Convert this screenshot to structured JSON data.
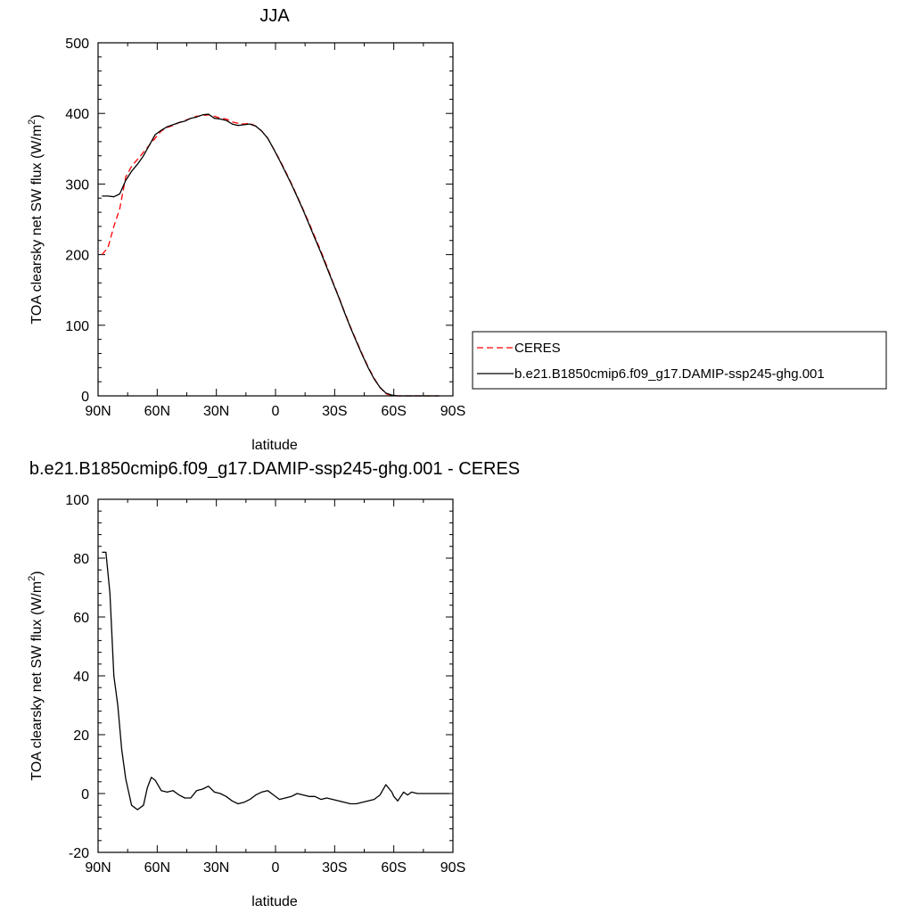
{
  "chart_data": [
    {
      "type": "line",
      "title": "JJA",
      "xlabel": "latitude",
      "ylabel": "TOA clearsky net SW flux (W/m",
      "ylabel_sup": "2",
      "ylabel_end": ")",
      "xlim": [
        90,
        -90
      ],
      "ylim": [
        0,
        500
      ],
      "x_ticks": [
        90,
        60,
        30,
        0,
        -30,
        -60,
        -90
      ],
      "x_tick_labels": [
        "90N",
        "60N",
        "30N",
        "0",
        "30S",
        "60S",
        "90S"
      ],
      "y_ticks": [
        0,
        100,
        200,
        300,
        400,
        500
      ],
      "y_tick_labels": [
        "0",
        "100",
        "200",
        "300",
        "400",
        "500"
      ],
      "legend_position": "right",
      "series": [
        {
          "name": "CERES",
          "color": "#ff0000",
          "dash": "dashed",
          "x": [
            88,
            85,
            82,
            79,
            76,
            73,
            70,
            67,
            64,
            61,
            58,
            55,
            52,
            49,
            46,
            43,
            40,
            37,
            34,
            31,
            28,
            25,
            22,
            19,
            16,
            13,
            10,
            7,
            4,
            1,
            -2,
            -5,
            -8,
            -11,
            -14,
            -17,
            -20,
            -23,
            -26,
            -29,
            -32,
            -35,
            -38,
            -41,
            -44,
            -47,
            -50,
            -53,
            -56,
            -59,
            -62,
            -65,
            -68,
            -71,
            -74,
            -77,
            -80,
            -83
          ],
          "values": [
            200,
            210,
            240,
            265,
            310,
            325,
            335,
            345,
            355,
            365,
            375,
            380,
            383,
            387,
            390,
            393,
            396,
            397,
            398,
            396,
            393,
            392,
            388,
            386,
            385,
            386,
            382,
            375,
            365,
            350,
            335,
            318,
            301,
            283,
            264,
            245,
            225,
            205,
            184,
            162,
            141,
            119,
            98,
            78,
            59,
            41,
            25,
            12,
            3,
            0.5,
            0,
            0,
            0,
            0,
            0,
            0,
            0,
            0
          ]
        },
        {
          "name": "b.e21.B1850cmip6.f09_g17.DAMIP-ssp245-ghg.001",
          "color": "#000000",
          "dash": "solid",
          "x": [
            88,
            85,
            82,
            79,
            76,
            73,
            70,
            67,
            64,
            61,
            58,
            55,
            52,
            49,
            46,
            43,
            40,
            37,
            34,
            31,
            28,
            25,
            22,
            19,
            16,
            13,
            10,
            7,
            4,
            1,
            -2,
            -5,
            -8,
            -11,
            -14,
            -17,
            -20,
            -23,
            -26,
            -29,
            -32,
            -35,
            -38,
            -41,
            -44,
            -47,
            -50,
            -53,
            -56,
            -59,
            -62,
            -65,
            -68,
            -71,
            -74,
            -77,
            -80,
            -83
          ],
          "values": [
            283,
            283,
            282,
            286,
            305,
            318,
            328,
            340,
            355,
            370,
            376,
            381,
            384,
            387,
            389,
            393,
            395,
            398,
            399,
            393,
            392,
            390,
            385,
            383,
            384,
            385,
            382,
            375,
            365,
            350,
            334,
            317,
            300,
            282,
            263,
            243,
            223,
            203,
            182,
            161,
            140,
            118,
            97,
            77,
            58,
            40,
            24,
            12,
            4,
            1,
            0,
            0,
            0,
            0,
            0,
            0,
            0,
            0
          ]
        }
      ]
    },
    {
      "type": "line",
      "title": "b.e21.B1850cmip6.f09_g17.DAMIP-ssp245-ghg.001 - CERES",
      "xlabel": "latitude",
      "ylabel": "TOA clearsky net SW flux (W/m",
      "ylabel_sup": "2",
      "ylabel_end": ")",
      "xlim": [
        90,
        -90
      ],
      "ylim": [
        -20,
        100
      ],
      "x_ticks": [
        90,
        60,
        30,
        0,
        -30,
        -60,
        -90
      ],
      "x_tick_labels": [
        "90N",
        "60N",
        "30N",
        "0",
        "30S",
        "60S",
        "90S"
      ],
      "y_ticks": [
        -20,
        0,
        20,
        40,
        60,
        80,
        100
      ],
      "y_tick_labels": [
        "-20",
        "0",
        "20",
        "40",
        "60",
        "80",
        "100"
      ],
      "series": [
        {
          "color": "#000000",
          "dash": "solid",
          "x": [
            88,
            86,
            84,
            82,
            80,
            78,
            76,
            73,
            70,
            67,
            65,
            63,
            61,
            58,
            55,
            52,
            49,
            46,
            43,
            40,
            37,
            34,
            31,
            28,
            25,
            22,
            19,
            16,
            13,
            10,
            7,
            4,
            1,
            -2,
            -5,
            -8,
            -11,
            -14,
            -17,
            -20,
            -23,
            -26,
            -29,
            -32,
            -35,
            -38,
            -41,
            -44,
            -47,
            -50,
            -53,
            -56,
            -59,
            -60,
            -62,
            -65,
            -67,
            -69,
            -72,
            -75,
            -78,
            -81,
            -84,
            -88
          ],
          "values": [
            82,
            82,
            68,
            40,
            30,
            15,
            5,
            -4,
            -5.5,
            -4,
            2,
            5.5,
            4.5,
            1,
            0.5,
            1,
            -0.5,
            -1.5,
            -1.5,
            1,
            1.5,
            2.5,
            0.5,
            0,
            -1,
            -2.5,
            -3.5,
            -3,
            -2,
            -0.5,
            0.5,
            1,
            -0.5,
            -2,
            -1.5,
            -1,
            0,
            -0.5,
            -1,
            -1,
            -2,
            -1.5,
            -2,
            -2.5,
            -3,
            -3.5,
            -3.5,
            -3,
            -2.5,
            -2,
            -0.5,
            3,
            0.5,
            -1,
            -2.5,
            0.5,
            -0.5,
            0.5,
            0,
            0,
            0,
            0,
            0,
            0
          ]
        }
      ]
    }
  ]
}
